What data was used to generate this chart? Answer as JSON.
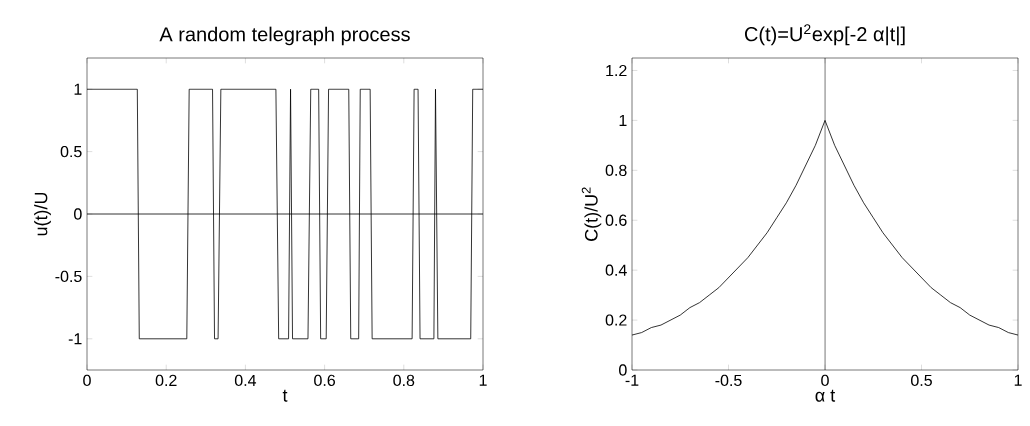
{
  "chart_data": [
    {
      "type": "line",
      "title": "A random telegraph process",
      "xlabel": "t",
      "ylabel": "u(t)/U",
      "x": [
        0,
        0.127,
        0.132,
        0.252,
        0.258,
        0.317,
        0.322,
        0.331,
        0.338,
        0.477,
        0.484,
        0.509,
        0.514,
        0.519,
        0.558,
        0.565,
        0.585,
        0.59,
        0.604,
        0.61,
        0.661,
        0.666,
        0.686,
        0.69,
        0.715,
        0.72,
        0.821,
        0.826,
        0.836,
        0.841,
        0.876,
        0.88,
        0.886,
        0.969,
        0.974,
        1
      ],
      "series": [
        {
          "color": "#000000",
          "values": [
            1,
            1,
            -1,
            -1,
            1,
            1,
            -1,
            -1,
            1,
            1,
            -1,
            -1,
            1,
            -1,
            -1,
            1,
            1,
            -1,
            -1,
            1,
            1,
            -1,
            -1,
            1,
            1,
            -1,
            -1,
            1,
            1,
            -1,
            -1,
            1,
            -1,
            -1,
            1,
            1
          ]
        }
      ],
      "xlim": [
        0,
        1
      ],
      "ylim": [
        -1.25,
        1.25
      ],
      "xticks": [
        0,
        0.2,
        0.4,
        0.6,
        0.8,
        1
      ],
      "yticks": [
        -1,
        -0.5,
        0,
        0.5,
        1
      ],
      "ref_lines": [
        {
          "axis": "y",
          "value": 0
        }
      ]
    },
    {
      "type": "line",
      "title": "C(t)=U$^{2}$exp[-2 α|t|]",
      "xlabel": "α t",
      "ylabel": "C(t)/U$^{2}$",
      "x": [
        -1,
        -0.95,
        -0.9,
        -0.85,
        -0.8,
        -0.75,
        -0.7,
        -0.65,
        -0.6,
        -0.55,
        -0.5,
        -0.45,
        -0.4,
        -0.35,
        -0.3,
        -0.25,
        -0.2,
        -0.15,
        -0.1,
        -0.05,
        0,
        0.05,
        0.1,
        0.15,
        0.2,
        0.25,
        0.3,
        0.35,
        0.4,
        0.45,
        0.5,
        0.55,
        0.6,
        0.65,
        0.7,
        0.75,
        0.8,
        0.85,
        0.9,
        0.95,
        1
      ],
      "series": [
        {
          "color": "#000000",
          "values": [
            0.14,
            0.15,
            0.17,
            0.18,
            0.2,
            0.22,
            0.25,
            0.27,
            0.3,
            0.33,
            0.37,
            0.41,
            0.45,
            0.5,
            0.55,
            0.61,
            0.67,
            0.74,
            0.82,
            0.9,
            1,
            0.9,
            0.82,
            0.74,
            0.67,
            0.61,
            0.55,
            0.5,
            0.45,
            0.41,
            0.37,
            0.33,
            0.3,
            0.27,
            0.25,
            0.22,
            0.2,
            0.18,
            0.17,
            0.15,
            0.14
          ]
        }
      ],
      "xlim": [
        -1,
        1
      ],
      "ylim": [
        0,
        1.25
      ],
      "xticks": [
        -1,
        -0.5,
        0,
        0.5,
        1
      ],
      "yticks": [
        0,
        0.2,
        0.4,
        0.6,
        0.8,
        1,
        1.2
      ],
      "ref_lines": [
        {
          "axis": "x",
          "value": 0
        }
      ]
    }
  ]
}
